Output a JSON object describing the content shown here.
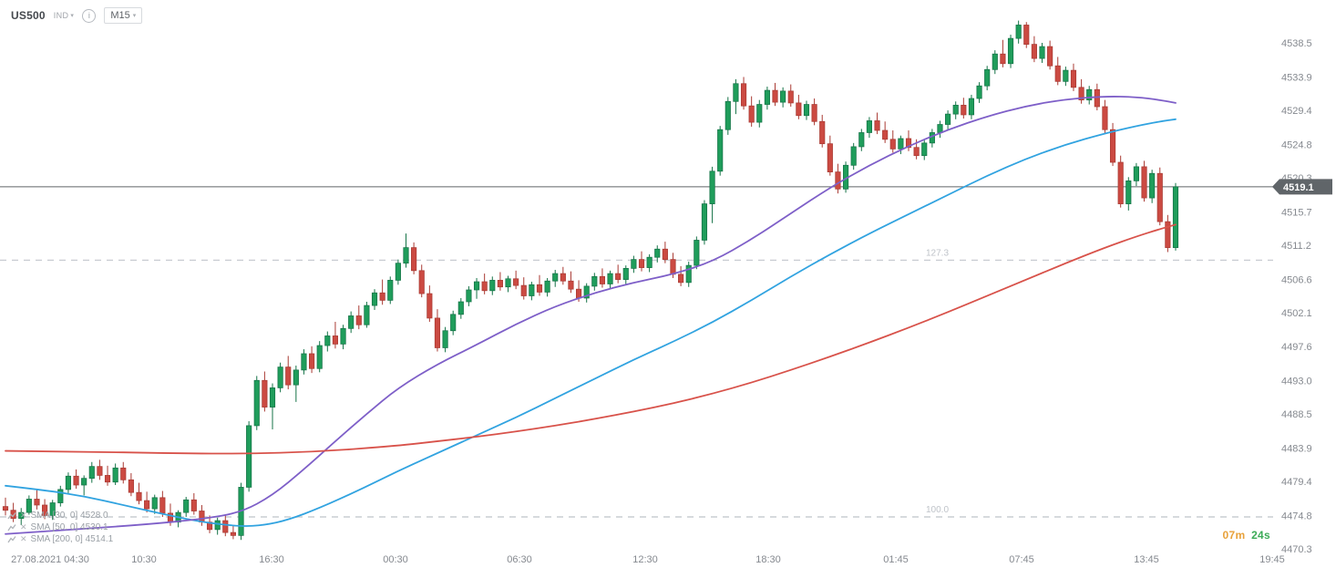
{
  "header": {
    "symbol": "US500",
    "instrument_type": "IND",
    "timeframe": "M15"
  },
  "timer": {
    "minutes": "07m",
    "seconds": "24s"
  },
  "indicators": [
    {
      "label": "SMA [30, 0]",
      "value": "4528.0"
    },
    {
      "label": "SMA [50, 0]",
      "value": "4530.1"
    },
    {
      "label": "SMA [200, 0]",
      "value": "4514.1"
    }
  ],
  "chart_data": {
    "type": "candlestick",
    "symbol": "US500",
    "timeframe": "M15",
    "current_price": 4519.1,
    "price_ticks": [
      4538.5,
      4533.9,
      4529.4,
      4524.8,
      4520.3,
      4515.7,
      4511.2,
      4506.6,
      4502.1,
      4497.6,
      4493.0,
      4488.5,
      4483.9,
      4479.4,
      4474.8,
      4470.3
    ],
    "time_ticks": [
      "27.08.2021 04:30",
      "10:30",
      "16:30",
      "00:30",
      "06:30",
      "12:30",
      "18:30",
      "01:45",
      "07:45",
      "13:45",
      "19:45"
    ],
    "levels": [
      {
        "label": "127.3",
        "price": 4509.2
      },
      {
        "label": "100.0",
        "price": 4474.6
      }
    ],
    "colors": {
      "up": "#1f9d5b",
      "up_border": "#157347",
      "down": "#cb4a42",
      "down_border": "#a93a33",
      "level": "#c9cdd2",
      "level_label": "#bfc3c9",
      "price_line": "#5f6468",
      "tag_bg": "#606569",
      "tag_text": "#ffffff",
      "axis_text": "#85898f"
    },
    "ma_series": [
      {
        "name": "SMA 30",
        "color": "#31a3e0",
        "points": [
          [
            0,
            4478.8
          ],
          [
            5,
            4478.2
          ],
          [
            10,
            4477.4
          ],
          [
            15,
            4476.2
          ],
          [
            20,
            4475.0
          ],
          [
            25,
            4473.9
          ],
          [
            30,
            4473.3
          ],
          [
            33,
            4473.5
          ],
          [
            36,
            4474.2
          ],
          [
            40,
            4475.8
          ],
          [
            45,
            4478.2
          ],
          [
            50,
            4480.8
          ],
          [
            55,
            4483.2
          ],
          [
            60,
            4485.6
          ],
          [
            65,
            4488.0
          ],
          [
            70,
            4490.6
          ],
          [
            75,
            4493.2
          ],
          [
            80,
            4495.8
          ],
          [
            85,
            4498.2
          ],
          [
            90,
            4500.8
          ],
          [
            95,
            4503.8
          ],
          [
            100,
            4507.0
          ],
          [
            105,
            4510.0
          ],
          [
            110,
            4512.8
          ],
          [
            115,
            4515.4
          ],
          [
            120,
            4518.0
          ],
          [
            125,
            4520.6
          ],
          [
            130,
            4522.9
          ],
          [
            135,
            4524.8
          ],
          [
            140,
            4526.3
          ],
          [
            144,
            4527.3
          ],
          [
            147,
            4527.9
          ],
          [
            149,
            4528.2
          ]
        ]
      },
      {
        "name": "SMA 50",
        "color": "#7e5fc8",
        "points": [
          [
            0,
            4472.3
          ],
          [
            10,
            4473.0
          ],
          [
            18,
            4473.6
          ],
          [
            25,
            4474.3
          ],
          [
            30,
            4475.2
          ],
          [
            34,
            4477.5
          ],
          [
            38,
            4481.0
          ],
          [
            42,
            4484.8
          ],
          [
            46,
            4488.5
          ],
          [
            50,
            4492.0
          ],
          [
            55,
            4495.2
          ],
          [
            60,
            4497.8
          ],
          [
            65,
            4500.6
          ],
          [
            70,
            4503.0
          ],
          [
            75,
            4504.8
          ],
          [
            80,
            4506.2
          ],
          [
            85,
            4507.3
          ],
          [
            90,
            4509.0
          ],
          [
            95,
            4512.0
          ],
          [
            100,
            4515.5
          ],
          [
            105,
            4519.0
          ],
          [
            110,
            4522.0
          ],
          [
            115,
            4524.6
          ],
          [
            120,
            4526.8
          ],
          [
            125,
            4528.6
          ],
          [
            130,
            4530.0
          ],
          [
            135,
            4530.9
          ],
          [
            140,
            4531.3
          ],
          [
            144,
            4531.2
          ],
          [
            147,
            4530.8
          ],
          [
            149,
            4530.4
          ]
        ]
      },
      {
        "name": "SMA 200",
        "color": "#d8524a",
        "points": [
          [
            0,
            4483.5
          ],
          [
            10,
            4483.4
          ],
          [
            20,
            4483.2
          ],
          [
            30,
            4483.1
          ],
          [
            40,
            4483.4
          ],
          [
            50,
            4484.2
          ],
          [
            55,
            4484.8
          ],
          [
            60,
            4485.4
          ],
          [
            65,
            4486.1
          ],
          [
            70,
            4486.9
          ],
          [
            75,
            4487.8
          ],
          [
            80,
            4488.8
          ],
          [
            85,
            4489.9
          ],
          [
            90,
            4491.2
          ],
          [
            95,
            4492.7
          ],
          [
            100,
            4494.4
          ],
          [
            105,
            4496.2
          ],
          [
            110,
            4498.1
          ],
          [
            115,
            4500.1
          ],
          [
            120,
            4502.2
          ],
          [
            125,
            4504.4
          ],
          [
            130,
            4506.6
          ],
          [
            135,
            4508.8
          ],
          [
            140,
            4510.9
          ],
          [
            144,
            4512.4
          ],
          [
            147,
            4513.4
          ],
          [
            149,
            4514.0
          ]
        ]
      }
    ],
    "candles": [
      [
        4476.0,
        4477.2,
        4474.8,
        4475.5
      ],
      [
        4475.5,
        4476.5,
        4473.9,
        4474.4
      ],
      [
        4474.4,
        4475.8,
        4473.5,
        4475.2
      ],
      [
        4475.2,
        4477.5,
        4474.9,
        4477.0
      ],
      [
        4477.0,
        4478.4,
        4475.6,
        4476.2
      ],
      [
        4476.2,
        4477.0,
        4474.3,
        4474.8
      ],
      [
        4474.8,
        4476.9,
        4474.2,
        4476.5
      ],
      [
        4476.5,
        4478.8,
        4476.0,
        4478.3
      ],
      [
        4478.3,
        4480.6,
        4477.8,
        4480.1
      ],
      [
        4480.1,
        4481.0,
        4478.4,
        4478.9
      ],
      [
        4478.9,
        4480.2,
        4477.5,
        4479.8
      ],
      [
        4479.8,
        4482.0,
        4479.2,
        4481.4
      ],
      [
        4481.4,
        4482.3,
        4479.6,
        4480.2
      ],
      [
        4480.2,
        4481.5,
        4478.8,
        4479.3
      ],
      [
        4479.3,
        4481.8,
        4478.9,
        4481.2
      ],
      [
        4481.2,
        4482.0,
        4479.1,
        4479.6
      ],
      [
        4479.6,
        4480.5,
        4477.4,
        4477.9
      ],
      [
        4477.9,
        4479.2,
        4476.3,
        4476.8
      ],
      [
        4476.8,
        4478.0,
        4475.2,
        4475.7
      ],
      [
        4475.7,
        4477.6,
        4475.0,
        4477.2
      ],
      [
        4477.2,
        4478.1,
        4474.6,
        4475.1
      ],
      [
        4475.1,
        4476.4,
        4473.4,
        4473.9
      ],
      [
        4473.9,
        4475.5,
        4473.2,
        4475.2
      ],
      [
        4475.2,
        4477.3,
        4474.6,
        4476.9
      ],
      [
        4476.9,
        4477.8,
        4474.9,
        4475.4
      ],
      [
        4475.4,
        4476.2,
        4473.4,
        4473.9
      ],
      [
        4473.9,
        4474.8,
        4472.4,
        4472.9
      ],
      [
        4472.9,
        4474.5,
        4472.2,
        4474.1
      ],
      [
        4474.1,
        4474.8,
        4472.0,
        4472.5
      ],
      [
        4472.5,
        4473.4,
        4471.6,
        4472.1
      ],
      [
        4472.1,
        4479.2,
        4471.5,
        4478.6
      ],
      [
        4478.6,
        4487.5,
        4478.0,
        4486.9
      ],
      [
        4486.9,
        4493.6,
        4486.3,
        4493.0
      ],
      [
        4493.0,
        4494.2,
        4488.8,
        4489.4
      ],
      [
        4489.4,
        4492.6,
        4486.4,
        4492.0
      ],
      [
        4492.0,
        4495.4,
        4491.4,
        4494.8
      ],
      [
        4494.8,
        4496.3,
        4491.8,
        4492.4
      ],
      [
        4492.4,
        4495.0,
        4490.1,
        4494.4
      ],
      [
        4494.4,
        4497.2,
        4493.8,
        4496.6
      ],
      [
        4496.6,
        4497.6,
        4494.0,
        4494.6
      ],
      [
        4494.6,
        4498.3,
        4494.1,
        4497.7
      ],
      [
        4497.7,
        4499.6,
        4496.9,
        4499.0
      ],
      [
        4499.0,
        4500.9,
        4497.3,
        4497.9
      ],
      [
        4497.9,
        4500.5,
        4497.2,
        4500.0
      ],
      [
        4500.0,
        4502.3,
        4499.4,
        4501.7
      ],
      [
        4501.7,
        4503.1,
        4499.9,
        4500.5
      ],
      [
        4500.5,
        4503.6,
        4500.1,
        4503.1
      ],
      [
        4503.1,
        4505.3,
        4502.5,
        4504.8
      ],
      [
        4504.8,
        4506.6,
        4503.2,
        4503.8
      ],
      [
        4503.8,
        4507.0,
        4503.3,
        4506.5
      ],
      [
        4506.5,
        4509.3,
        4505.9,
        4508.8
      ],
      [
        4508.8,
        4512.8,
        4508.2,
        4510.9
      ],
      [
        4510.9,
        4511.6,
        4507.3,
        4507.8
      ],
      [
        4507.8,
        4508.6,
        4504.2,
        4504.7
      ],
      [
        4504.7,
        4505.8,
        4500.9,
        4501.4
      ],
      [
        4501.4,
        4502.6,
        4496.9,
        4497.4
      ],
      [
        4497.4,
        4500.2,
        4496.8,
        4499.7
      ],
      [
        4499.7,
        4502.4,
        4499.1,
        4501.9
      ],
      [
        4501.9,
        4504.1,
        4501.3,
        4503.6
      ],
      [
        4503.6,
        4505.7,
        4503.0,
        4505.2
      ],
      [
        4505.2,
        4506.8,
        4504.0,
        4506.3
      ],
      [
        4506.3,
        4507.4,
        4504.6,
        4505.1
      ],
      [
        4505.1,
        4507.0,
        4504.5,
        4506.5
      ],
      [
        4506.5,
        4507.6,
        4505.1,
        4505.6
      ],
      [
        4505.6,
        4507.1,
        4504.9,
        4506.7
      ],
      [
        4506.7,
        4507.8,
        4505.3,
        4505.8
      ],
      [
        4505.8,
        4506.9,
        4503.9,
        4504.4
      ],
      [
        4504.4,
        4506.3,
        4503.8,
        4505.9
      ],
      [
        4505.9,
        4507.2,
        4504.4,
        4504.9
      ],
      [
        4504.9,
        4506.8,
        4504.3,
        4506.4
      ],
      [
        4506.4,
        4507.9,
        4505.6,
        4507.4
      ],
      [
        4507.4,
        4508.3,
        4505.9,
        4506.4
      ],
      [
        4506.4,
        4507.7,
        4504.8,
        4505.3
      ],
      [
        4505.3,
        4506.5,
        4503.6,
        4504.1
      ],
      [
        4504.1,
        4506.1,
        4503.5,
        4505.7
      ],
      [
        4505.7,
        4507.5,
        4505.1,
        4507.0
      ],
      [
        4507.0,
        4508.1,
        4505.5,
        4506.0
      ],
      [
        4506.0,
        4507.8,
        4505.4,
        4507.4
      ],
      [
        4507.4,
        4508.6,
        4506.1,
        4506.6
      ],
      [
        4506.6,
        4508.5,
        4506.0,
        4508.1
      ],
      [
        4508.1,
        4509.8,
        4507.5,
        4509.3
      ],
      [
        4509.3,
        4510.4,
        4507.7,
        4508.2
      ],
      [
        4508.2,
        4510.0,
        4507.6,
        4509.6
      ],
      [
        4509.6,
        4511.2,
        4508.9,
        4510.7
      ],
      [
        4510.7,
        4511.7,
        4508.8,
        4509.3
      ],
      [
        4509.3,
        4510.2,
        4506.8,
        4507.3
      ],
      [
        4507.3,
        4508.4,
        4505.7,
        4506.2
      ],
      [
        4506.2,
        4509.0,
        4505.6,
        4508.5
      ],
      [
        4508.5,
        4512.4,
        4508.0,
        4511.9
      ],
      [
        4511.9,
        4517.3,
        4511.3,
        4516.8
      ],
      [
        4516.8,
        4521.8,
        4514.2,
        4521.2
      ],
      [
        4521.2,
        4527.3,
        4520.6,
        4526.8
      ],
      [
        4526.8,
        4531.2,
        4526.1,
        4530.6
      ],
      [
        4530.6,
        4533.6,
        4528.9,
        4533.0
      ],
      [
        4533.0,
        4533.9,
        4529.5,
        4530.0
      ],
      [
        4530.0,
        4531.3,
        4527.2,
        4527.8
      ],
      [
        4527.8,
        4530.8,
        4527.1,
        4530.2
      ],
      [
        4530.2,
        4532.6,
        4529.5,
        4532.1
      ],
      [
        4532.1,
        4533.1,
        4530.0,
        4530.5
      ],
      [
        4530.5,
        4532.5,
        4529.8,
        4532.0
      ],
      [
        4532.0,
        4532.9,
        4529.9,
        4530.4
      ],
      [
        4530.4,
        4531.5,
        4528.2,
        4528.7
      ],
      [
        4528.7,
        4530.7,
        4528.1,
        4530.2
      ],
      [
        4530.2,
        4531.0,
        4527.4,
        4527.9
      ],
      [
        4527.9,
        4528.8,
        4524.4,
        4524.9
      ],
      [
        4524.9,
        4526.0,
        4520.6,
        4521.1
      ],
      [
        4521.1,
        4522.2,
        4518.2,
        4518.8
      ],
      [
        4518.8,
        4522.5,
        4518.3,
        4522.0
      ],
      [
        4522.0,
        4525.0,
        4521.4,
        4524.5
      ],
      [
        4524.5,
        4526.9,
        4523.9,
        4526.4
      ],
      [
        4526.4,
        4528.5,
        4525.7,
        4528.0
      ],
      [
        4528.0,
        4529.1,
        4526.2,
        4526.7
      ],
      [
        4526.7,
        4527.9,
        4525.0,
        4525.5
      ],
      [
        4525.5,
        4526.7,
        4523.7,
        4524.2
      ],
      [
        4524.2,
        4526.0,
        4523.5,
        4525.6
      ],
      [
        4525.6,
        4526.7,
        4523.9,
        4524.4
      ],
      [
        4524.4,
        4525.5,
        4522.8,
        4523.3
      ],
      [
        4523.3,
        4525.4,
        4522.7,
        4525.0
      ],
      [
        4525.0,
        4526.9,
        4524.4,
        4526.4
      ],
      [
        4526.4,
        4528.0,
        4525.7,
        4527.5
      ],
      [
        4527.5,
        4529.4,
        4526.8,
        4528.9
      ],
      [
        4528.9,
        4530.6,
        4528.2,
        4530.1
      ],
      [
        4530.1,
        4531.1,
        4528.3,
        4528.8
      ],
      [
        4528.8,
        4531.5,
        4528.2,
        4531.0
      ],
      [
        4531.0,
        4533.2,
        4530.4,
        4532.7
      ],
      [
        4532.7,
        4535.4,
        4532.1,
        4534.9
      ],
      [
        4534.9,
        4537.5,
        4534.3,
        4537.0
      ],
      [
        4537.0,
        4538.9,
        4535.2,
        4535.7
      ],
      [
        4535.7,
        4539.6,
        4535.1,
        4539.1
      ],
      [
        4539.1,
        4541.5,
        4538.4,
        4540.9
      ],
      [
        4540.9,
        4541.3,
        4537.8,
        4538.3
      ],
      [
        4538.3,
        4539.4,
        4535.9,
        4536.4
      ],
      [
        4536.4,
        4538.5,
        4535.8,
        4538.0
      ],
      [
        4538.0,
        4538.8,
        4534.9,
        4535.4
      ],
      [
        4535.4,
        4536.6,
        4532.8,
        4533.3
      ],
      [
        4533.3,
        4535.3,
        4532.7,
        4534.8
      ],
      [
        4534.8,
        4535.7,
        4532.0,
        4532.5
      ],
      [
        4532.5,
        4533.6,
        4530.3,
        4530.8
      ],
      [
        4530.8,
        4532.7,
        4530.2,
        4532.2
      ],
      [
        4532.2,
        4533.0,
        4529.4,
        4529.9
      ],
      [
        4529.9,
        4530.8,
        4526.3,
        4526.8
      ],
      [
        4526.8,
        4527.7,
        4521.9,
        4522.4
      ],
      [
        4522.4,
        4523.3,
        4516.3,
        4516.8
      ],
      [
        4516.8,
        4520.4,
        4515.9,
        4519.9
      ],
      [
        4519.9,
        4522.3,
        4519.2,
        4521.8
      ],
      [
        4521.8,
        4522.6,
        4517.1,
        4517.6
      ],
      [
        4517.6,
        4521.4,
        4516.9,
        4520.9
      ],
      [
        4520.9,
        4521.7,
        4513.9,
        4514.4
      ],
      [
        4514.4,
        4515.3,
        4510.3,
        4510.9
      ],
      [
        4510.9,
        4519.6,
        4510.5,
        4519.1
      ]
    ]
  }
}
